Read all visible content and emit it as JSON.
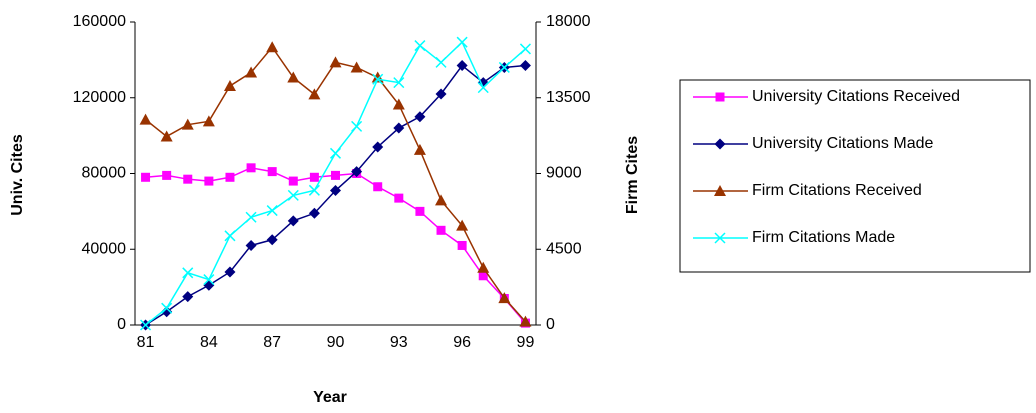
{
  "chart_data": {
    "type": "line",
    "x_label": "Year",
    "y_label": "Univ. Cites",
    "y2_label": "Firm Cites",
    "categories": [
      "81",
      null,
      null,
      "84",
      null,
      null,
      "87",
      null,
      null,
      "90",
      null,
      null,
      "93",
      null,
      null,
      "96",
      null,
      null,
      "99"
    ],
    "ylim": [
      0,
      160000
    ],
    "yticks": [
      0,
      40000,
      80000,
      120000,
      160000
    ],
    "y2lim": [
      0,
      18000
    ],
    "y2ticks": [
      0,
      4500,
      9000,
      13500,
      18000
    ],
    "grid": false,
    "legend": "right",
    "series": [
      {
        "name": "University Citations Received",
        "color": "#ff00ff",
        "marker": "square",
        "values": [
          78000,
          79000,
          77000,
          76000,
          78000,
          83000,
          81000,
          76000,
          78000,
          79000,
          80000,
          73000,
          67000,
          60000,
          50000,
          42000,
          26000,
          14000,
          1000
        ]
      },
      {
        "name": "University Citations Made",
        "color": "#000080",
        "marker": "diamond",
        "values": [
          0,
          7000,
          15000,
          21000,
          28000,
          42000,
          45000,
          55000,
          59000,
          71000,
          81000,
          94000,
          104000,
          110000,
          122000,
          137000,
          128000,
          136000,
          137000
        ]
      },
      {
        "name": "Firm Citations Received",
        "color": "#993300",
        "marker": "triangle",
        "axis": "y2",
        "values": [
          12200,
          11200,
          11900,
          12100,
          14200,
          15000,
          16500,
          14700,
          13700,
          15600,
          15300,
          14700,
          13100,
          10400,
          7400,
          5900,
          3400,
          1600,
          200
        ]
      },
      {
        "name": "Firm Citations Made",
        "color": "#00ffff",
        "marker": "x",
        "axis": "y2",
        "values": [
          0,
          1000,
          3100,
          2700,
          5300,
          6400,
          6800,
          7700,
          8000,
          10200,
          11800,
          14600,
          14400,
          16600,
          15600,
          16800,
          14100,
          15300,
          16400
        ]
      }
    ]
  }
}
